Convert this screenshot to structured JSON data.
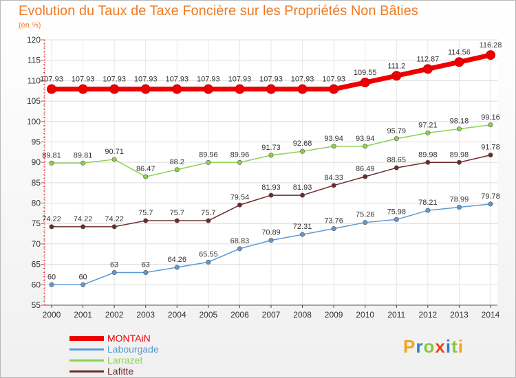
{
  "title": "Evolution du Taux de Taxe Foncière sur les Propriétés Non Bâties",
  "subtitle": "(en %)",
  "logo": {
    "letters": [
      "P",
      "r",
      "o",
      "x",
      "i",
      "t",
      "i"
    ],
    "colors": [
      "#f3a21b",
      "#2f80c3",
      "#8ac641",
      "#e8471c",
      "#2f80c3",
      "#8ac641",
      "#f3a21b"
    ]
  },
  "chart_data": {
    "type": "line",
    "x": [
      "2000",
      "2001",
      "2002",
      "2003",
      "2004",
      "2005",
      "2006",
      "2007",
      "2008",
      "2009",
      "2010",
      "2011",
      "2012",
      "2013",
      "2014"
    ],
    "yticks": [
      "55",
      "60",
      "65",
      "70",
      "75",
      "80",
      "85",
      "90",
      "95",
      "100",
      "105",
      "110",
      "115",
      "120"
    ],
    "ylim": [
      55,
      120
    ],
    "grid": true,
    "legend_position": "bottom-left",
    "series": [
      {
        "name": "MONTAiN",
        "color": "#ee0000",
        "values": [
          107.93,
          107.93,
          107.93,
          107.93,
          107.93,
          107.93,
          107.93,
          107.93,
          107.93,
          107.93,
          109.55,
          111.2,
          112.87,
          114.56,
          116.28
        ],
        "labels": [
          "107.93",
          "107.93",
          "107.93",
          "107.93",
          "107.93",
          "107.93",
          "107.93",
          "107.93",
          "107.93",
          "107.93",
          "109.55",
          "111.2",
          "112.87",
          "114.56",
          "116.28"
        ]
      },
      {
        "name": "Labourgade",
        "color": "#5b9ad5",
        "values": [
          60,
          60,
          63,
          63,
          64.26,
          65.55,
          68.83,
          70.89,
          72.31,
          73.76,
          75.26,
          75.98,
          78.21,
          78.99,
          79.78
        ],
        "labels": [
          "60",
          "60",
          "63",
          "63",
          "64.26",
          "65.55",
          "68.83",
          "70.89",
          "72.31",
          "73.76",
          "75.26",
          "75.98",
          "78.21",
          "78.99",
          "79.78"
        ]
      },
      {
        "name": "Larrazet",
        "color": "#8dd14f",
        "values": [
          89.81,
          89.81,
          90.71,
          86.47,
          88.2,
          89.96,
          89.96,
          91.73,
          92.68,
          93.94,
          93.94,
          95.79,
          97.21,
          98.18,
          99.16
        ],
        "labels": [
          "89.81",
          "89.81",
          "90.71",
          "86.47",
          "88.2",
          "89.96",
          "89.96",
          "91.73",
          "92.68",
          "93.94",
          "93.94",
          "95.79",
          "97.21",
          "98.18",
          "99.16"
        ]
      },
      {
        "name": "Lafitte",
        "color": "#6b2a2a",
        "values": [
          74.22,
          74.22,
          74.22,
          75.7,
          75.7,
          75.7,
          79.54,
          81.93,
          81.93,
          84.33,
          86.49,
          88.65,
          89.98,
          89.98,
          91.78
        ],
        "labels": [
          "74.22",
          "74.22",
          "74.22",
          "75.7",
          "75.7",
          "75.7",
          "79.54",
          "81.93",
          "81.93",
          "84.33",
          "86.49",
          "88.65",
          "89.98",
          "89.98",
          "91.78"
        ]
      }
    ]
  }
}
